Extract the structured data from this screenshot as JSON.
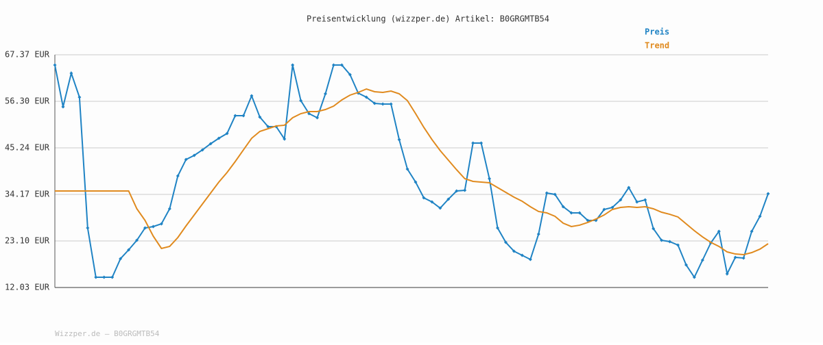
{
  "chart_data": {
    "type": "line",
    "title": "Preisentwicklung (wizzper.de) Artikel: B0GRGMTB54",
    "footer": "Wizzper.de – B0GRGMTB54",
    "ylim": [
      12.03,
      67.37
    ],
    "yticks": [
      {
        "value": 12.03,
        "label": "12.03 EUR"
      },
      {
        "value": 23.1,
        "label": "23.10 EUR"
      },
      {
        "value": 34.17,
        "label": "34.17 EUR"
      },
      {
        "value": 45.24,
        "label": "45.24 EUR"
      },
      {
        "value": 56.3,
        "label": "56.30 EUR"
      },
      {
        "value": 67.37,
        "label": "67.37 EUR"
      }
    ],
    "grid": true,
    "legend": "top-right",
    "series": [
      {
        "name": "Preis",
        "color": "#1f83c4",
        "markers": true,
        "values": [
          64.93,
          55.0,
          62.98,
          57.28,
          26.19,
          14.47,
          14.47,
          14.47,
          18.87,
          20.98,
          23.26,
          26.19,
          26.52,
          27.17,
          30.75,
          38.56,
          42.47,
          43.45,
          44.75,
          46.21,
          47.51,
          48.65,
          52.88,
          52.88,
          57.6,
          52.56,
          50.28,
          50.28,
          47.35,
          64.93,
          56.46,
          53.37,
          52.4,
          58.09,
          64.93,
          64.93,
          62.65,
          58.26,
          57.28,
          55.81,
          55.65,
          55.65,
          47.19,
          40.19,
          37.1,
          33.35,
          32.38,
          30.91,
          33.03,
          34.98,
          35.14,
          46.37,
          46.37,
          37.91,
          26.19,
          22.77,
          20.66,
          19.68,
          18.71,
          24.73,
          34.49,
          34.17,
          31.24,
          29.77,
          29.77,
          27.98,
          27.98,
          30.59,
          31.07,
          32.86,
          35.79,
          32.38,
          32.86,
          26.03,
          23.26,
          22.94,
          22.12,
          17.4,
          14.47,
          18.54,
          22.61,
          25.38,
          15.29,
          19.2,
          19.03,
          25.38,
          28.96,
          34.33
        ]
      },
      {
        "name": "Trend",
        "color": "#e08a1e",
        "markers": false,
        "values": [
          34.98,
          34.98,
          34.98,
          34.98,
          34.98,
          34.98,
          34.98,
          34.98,
          34.98,
          34.98,
          30.75,
          27.98,
          24.24,
          21.31,
          21.8,
          23.91,
          26.68,
          29.28,
          31.89,
          34.49,
          37.1,
          39.37,
          41.98,
          44.75,
          47.51,
          49.14,
          49.79,
          50.44,
          50.61,
          52.4,
          53.37,
          53.86,
          53.86,
          54.35,
          55.16,
          56.63,
          57.77,
          58.42,
          59.23,
          58.58,
          58.42,
          58.74,
          58.09,
          56.46,
          53.37,
          50.12,
          47.19,
          44.58,
          42.3,
          40.03,
          37.91,
          37.26,
          37.1,
          36.93,
          35.79,
          34.65,
          33.52,
          32.54,
          31.24,
          30.1,
          29.77,
          28.96,
          27.33,
          26.52,
          26.85,
          27.5,
          28.31,
          29.28,
          30.59,
          31.07,
          31.24,
          31.07,
          31.24,
          30.75,
          29.93,
          29.44,
          28.8,
          27.17,
          25.54,
          24.07,
          22.77,
          21.8,
          20.49,
          20.0,
          19.84,
          20.33,
          21.15,
          22.45
        ]
      }
    ]
  }
}
